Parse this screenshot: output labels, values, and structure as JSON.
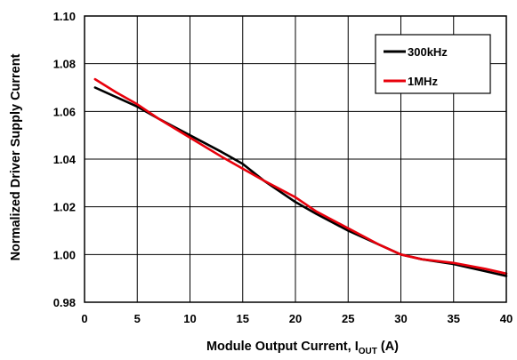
{
  "chart_data": {
    "type": "line",
    "xlabel": "Module Output Current, I",
    "xlabel_sub": "OUT",
    "xlabel_unit": " (A)",
    "ylabel": "Normalized Driver Supply Current",
    "xlim": [
      0,
      40
    ],
    "ylim": [
      0.98,
      1.1
    ],
    "x_ticks": [
      "0",
      "5",
      "10",
      "15",
      "20",
      "25",
      "30",
      "35",
      "40"
    ],
    "y_ticks": [
      "0.98",
      "1.00",
      "1.02",
      "1.04",
      "1.06",
      "1.08",
      "1.10"
    ],
    "grid": true,
    "legend_position": "top-right",
    "series": [
      {
        "name": "300kHz",
        "color": "#000000",
        "x": [
          1,
          3,
          5,
          7,
          10,
          13,
          15,
          17,
          20,
          22,
          25,
          28,
          30,
          32,
          35,
          38,
          40
        ],
        "y": [
          1.07,
          1.066,
          1.062,
          1.057,
          1.05,
          1.043,
          1.038,
          1.031,
          1.022,
          1.017,
          1.01,
          1.004,
          1.0,
          0.998,
          0.996,
          0.993,
          0.991
        ]
      },
      {
        "name": "1MHz",
        "color": "#e8000b",
        "x": [
          1,
          3,
          5,
          7,
          10,
          13,
          15,
          17,
          20,
          22,
          25,
          28,
          30,
          32,
          35,
          38,
          40
        ],
        "y": [
          1.0735,
          1.068,
          1.063,
          1.057,
          1.049,
          1.041,
          1.036,
          1.031,
          1.024,
          1.018,
          1.011,
          1.004,
          1.0,
          0.998,
          0.9965,
          0.994,
          0.992
        ]
      }
    ]
  }
}
